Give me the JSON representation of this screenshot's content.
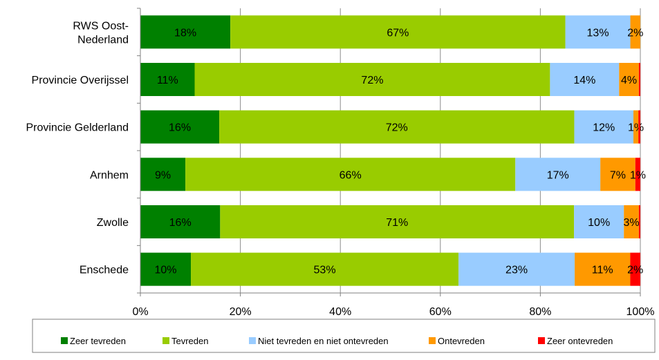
{
  "chart_data": {
    "type": "bar",
    "orientation": "horizontal",
    "stacked": "percent",
    "categories": [
      "RWS Oost-\nNederland",
      "Provincie Overijssel",
      "Provincie Gelderland",
      "Arnhem",
      "Zwolle",
      "Enschede"
    ],
    "series": [
      {
        "name": "Zeer tevreden",
        "color": "#008000",
        "values": [
          18,
          11,
          16,
          9,
          16,
          10
        ],
        "labels": [
          "18%",
          "11%",
          "16%",
          "9%",
          "16%",
          "10%"
        ]
      },
      {
        "name": "Tevreden",
        "color": "#99cc00",
        "values": [
          67,
          72,
          72,
          66,
          71,
          53
        ],
        "labels": [
          "67%",
          "72%",
          "72%",
          "66%",
          "71%",
          "53%"
        ]
      },
      {
        "name": "Niet tevreden en niet ontevreden",
        "color": "#99ccff",
        "values": [
          13,
          14,
          12,
          17,
          10,
          23
        ],
        "labels": [
          "13%",
          "14%",
          "12%",
          "17%",
          "10%",
          "23%"
        ]
      },
      {
        "name": "Ontevreden",
        "color": "#ff9900",
        "values": [
          2,
          4,
          1,
          7,
          3,
          11
        ],
        "labels": [
          "2%",
          "4%",
          "1%",
          "7%",
          "3%",
          "11%"
        ]
      },
      {
        "name": "Zeer ontevreden",
        "color": "#ff0000",
        "values": [
          0,
          0.3,
          0.4,
          1,
          0.3,
          2
        ],
        "labels": [
          "",
          "",
          "",
          "1%",
          "",
          "2%"
        ]
      }
    ],
    "xlim": [
      0,
      100
    ],
    "xticks": [
      "0%",
      "20%",
      "40%",
      "60%",
      "80%",
      "100%"
    ],
    "grid": "vertical",
    "legend_position": "bottom"
  }
}
